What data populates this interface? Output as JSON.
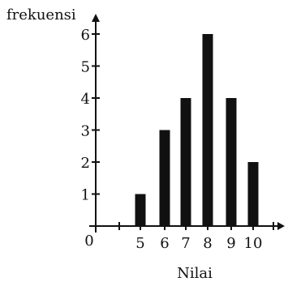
{
  "chart_data": {
    "type": "bar",
    "ylabel": "frekuensi",
    "xlabel": "Nilai",
    "origin_label": "0",
    "categories": [
      "5",
      "6",
      "7",
      "8",
      "9",
      "10"
    ],
    "values": [
      1,
      3,
      4,
      6,
      4,
      2
    ],
    "yticks": [
      "1",
      "2",
      "3",
      "4",
      "5",
      "6"
    ],
    "ylim": [
      0,
      6
    ],
    "grid": false,
    "bar_color": "#111111"
  }
}
